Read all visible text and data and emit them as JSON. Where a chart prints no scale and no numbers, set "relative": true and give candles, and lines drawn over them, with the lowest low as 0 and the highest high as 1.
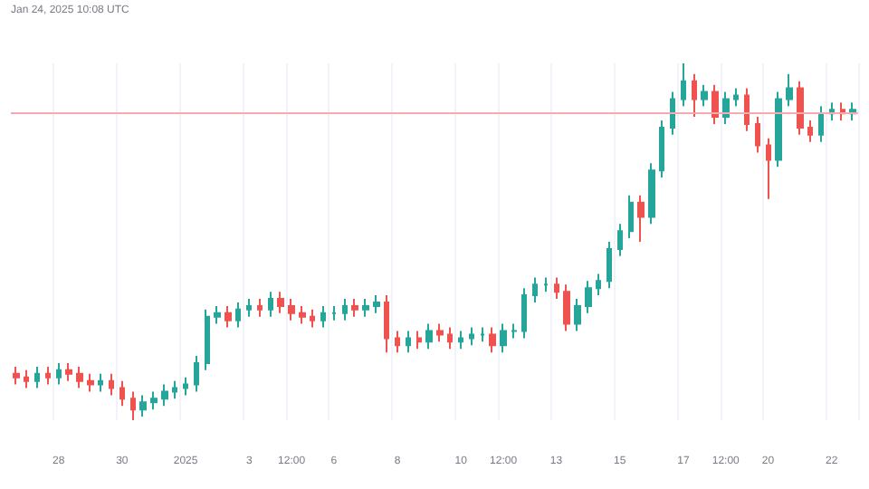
{
  "chart_data": {
    "type": "candlestick",
    "relative": true,
    "grid": "x",
    "annotations": [
      "Jan 24, 2025 10:08 UTC"
    ],
    "categories": [
      null,
      null,
      null,
      null,
      "28",
      null,
      null,
      null,
      null,
      null,
      "30",
      null,
      null,
      null,
      null,
      null,
      "2025",
      null,
      null,
      null,
      null,
      null,
      "3",
      null,
      null,
      null,
      "12:00",
      null,
      null,
      null,
      "6",
      null,
      null,
      null,
      null,
      null,
      "8",
      null,
      null,
      null,
      null,
      null,
      "10",
      null,
      null,
      null,
      "12:00",
      null,
      null,
      null,
      null,
      "13",
      null,
      null,
      null,
      null,
      null,
      "15",
      null,
      null,
      null,
      null,
      null,
      "17",
      null,
      null,
      null,
      "12:00",
      null,
      null,
      null,
      "20",
      null,
      null,
      null,
      null,
      null,
      "22",
      null,
      null
    ],
    "ohlc": [
      [
        0.13,
        0.15,
        0.1,
        0.12
      ],
      [
        0.12,
        0.14,
        0.09,
        0.11
      ],
      [
        0.11,
        0.15,
        0.09,
        0.13
      ],
      [
        0.13,
        0.15,
        0.1,
        0.12
      ],
      [
        0.12,
        0.16,
        0.1,
        0.14
      ],
      [
        0.14,
        0.16,
        0.11,
        0.13
      ],
      [
        0.13,
        0.15,
        0.09,
        0.11
      ],
      [
        0.11,
        0.13,
        0.08,
        0.1
      ],
      [
        0.1,
        0.13,
        0.08,
        0.11
      ],
      [
        0.11,
        0.13,
        0.07,
        0.09
      ],
      [
        0.09,
        0.11,
        0.04,
        0.06
      ],
      [
        0.06,
        0.08,
        0,
        0.03
      ],
      [
        0.03,
        0.07,
        0.01,
        0.05
      ],
      [
        0.05,
        0.08,
        0.03,
        0.06
      ],
      [
        0.06,
        0.1,
        0.04,
        0.08
      ],
      [
        0.08,
        0.11,
        0.06,
        0.09
      ],
      [
        0.09,
        0.12,
        0.07,
        0.1
      ],
      [
        0.1,
        0.18,
        0.08,
        0.16
      ],
      [
        0.16,
        0.31,
        0.14,
        0.29
      ],
      [
        0.29,
        0.32,
        0.27,
        0.3
      ],
      [
        0.3,
        0.32,
        0.26,
        0.28
      ],
      [
        0.28,
        0.33,
        0.26,
        0.31
      ],
      [
        0.31,
        0.34,
        0.29,
        0.32
      ],
      [
        0.32,
        0.34,
        0.29,
        0.31
      ],
      [
        0.31,
        0.36,
        0.29,
        0.34
      ],
      [
        0.34,
        0.36,
        0.3,
        0.32
      ],
      [
        0.32,
        0.34,
        0.28,
        0.3
      ],
      [
        0.3,
        0.32,
        0.27,
        0.29
      ],
      [
        0.29,
        0.31,
        0.26,
        0.28
      ],
      [
        0.28,
        0.32,
        0.26,
        0.3
      ],
      [
        0.3,
        0.32,
        0.28,
        0.3
      ],
      [
        0.3,
        0.34,
        0.28,
        0.32
      ],
      [
        0.32,
        0.34,
        0.29,
        0.31
      ],
      [
        0.31,
        0.34,
        0.29,
        0.32
      ],
      [
        0.32,
        0.35,
        0.3,
        0.33
      ],
      [
        0.33,
        0.35,
        0.19,
        0.23
      ],
      [
        0.23,
        0.25,
        0.19,
        0.21
      ],
      [
        0.21,
        0.25,
        0.19,
        0.23
      ],
      [
        0.23,
        0.25,
        0.2,
        0.22
      ],
      [
        0.22,
        0.27,
        0.2,
        0.25
      ],
      [
        0.25,
        0.27,
        0.22,
        0.24
      ],
      [
        0.24,
        0.26,
        0.2,
        0.22
      ],
      [
        0.22,
        0.25,
        0.2,
        0.23
      ],
      [
        0.23,
        0.26,
        0.21,
        0.24
      ],
      [
        0.24,
        0.26,
        0.22,
        0.24
      ],
      [
        0.24,
        0.26,
        0.19,
        0.21
      ],
      [
        0.21,
        0.27,
        0.19,
        0.25
      ],
      [
        0.25,
        0.27,
        0.23,
        0.25
      ],
      [
        0.25,
        0.37,
        0.23,
        0.35
      ],
      [
        0.35,
        0.4,
        0.33,
        0.38
      ],
      [
        0.38,
        0.4,
        0.36,
        0.38
      ],
      [
        0.38,
        0.4,
        0.34,
        0.36
      ],
      [
        0.36,
        0.38,
        0.25,
        0.27
      ],
      [
        0.27,
        0.34,
        0.25,
        0.32
      ],
      [
        0.32,
        0.39,
        0.3,
        0.37
      ],
      [
        0.37,
        0.41,
        0.35,
        0.39
      ],
      [
        0.39,
        0.5,
        0.37,
        0.48
      ],
      [
        0.48,
        0.55,
        0.46,
        0.53
      ],
      [
        0.53,
        0.63,
        0.51,
        0.61
      ],
      [
        0.61,
        0.63,
        0.5,
        0.57
      ],
      [
        0.57,
        0.72,
        0.55,
        0.7
      ],
      [
        0.7,
        0.84,
        0.68,
        0.82
      ],
      [
        0.82,
        0.92,
        0.8,
        0.9
      ],
      [
        0.9,
        1,
        0.88,
        0.95
      ],
      [
        0.95,
        0.97,
        0.85,
        0.9
      ],
      [
        0.9,
        0.94,
        0.88,
        0.92
      ],
      [
        0.92,
        0.94,
        0.83,
        0.85
      ],
      [
        0.85,
        0.92,
        0.83,
        0.9
      ],
      [
        0.9,
        0.93,
        0.88,
        0.91
      ],
      [
        0.91,
        0.93,
        0.81,
        0.83
      ],
      [
        0.83,
        0.85,
        0.75,
        0.77
      ],
      [
        0.77,
        0.79,
        0.62,
        0.73
      ],
      [
        0.73,
        0.92,
        0.71,
        0.9
      ],
      [
        0.9,
        0.97,
        0.88,
        0.93
      ],
      [
        0.93,
        0.95,
        0.8,
        0.82
      ],
      [
        0.82,
        0.84,
        0.78,
        0.8
      ],
      [
        0.8,
        0.88,
        0.78,
        0.86
      ],
      [
        0.86,
        0.89,
        0.84,
        0.87
      ],
      [
        0.87,
        0.89,
        0.84,
        0.86
      ],
      [
        0.86,
        0.89,
        0.84,
        0.87
      ]
    ],
    "ref_lines": [
      {
        "axis": "y",
        "value": 0.86,
        "color": "#f7a9b0"
      }
    ]
  }
}
